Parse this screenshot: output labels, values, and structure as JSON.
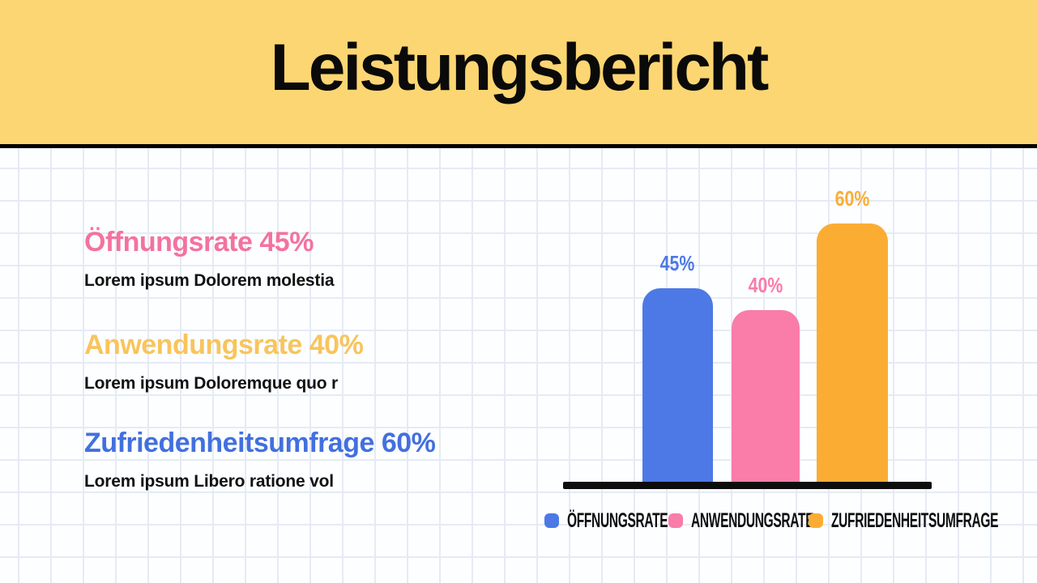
{
  "header": {
    "title": "Leistungsbericht",
    "background": "#FCD672",
    "divider_color": "#000000"
  },
  "sections": [
    {
      "heading": "Öffnungsrate 45%",
      "description": "Lorem ipsum Dolorem molestia",
      "accent": "#F4729E"
    },
    {
      "heading": "Anwendungsrate 40%",
      "description": "Lorem ipsum Doloremque quo r",
      "accent": "#F8C45C"
    },
    {
      "heading": "Zufriedenheitsumfrage 60%",
      "description": "Lorem ipsum Libero ratione vol",
      "accent": "#4270DE"
    }
  ],
  "chart_data": {
    "type": "bar",
    "categories": [
      "Öffnungsrate",
      "Anwendungsrate",
      "Zufriedenheitsumfrage"
    ],
    "values": [
      45,
      40,
      60
    ],
    "value_labels": [
      "45%",
      "40%",
      "60%"
    ],
    "bar_colors": [
      "#4C79E6",
      "#F97CA9",
      "#FBAD33"
    ],
    "unit": "%",
    "ylim": [
      0,
      68
    ],
    "grid": false,
    "axis_color": "#0D0D0D",
    "legend_position": "bottom",
    "legend": [
      {
        "label": "ÖFFNUNGSRATE",
        "color": "#4C79E6"
      },
      {
        "label": "ANWENDUNGSRATE",
        "color": "#F97CA9"
      },
      {
        "label": "ZUFRIEDENHEITSUMFRAGE",
        "color": "#FBAD33"
      }
    ]
  }
}
